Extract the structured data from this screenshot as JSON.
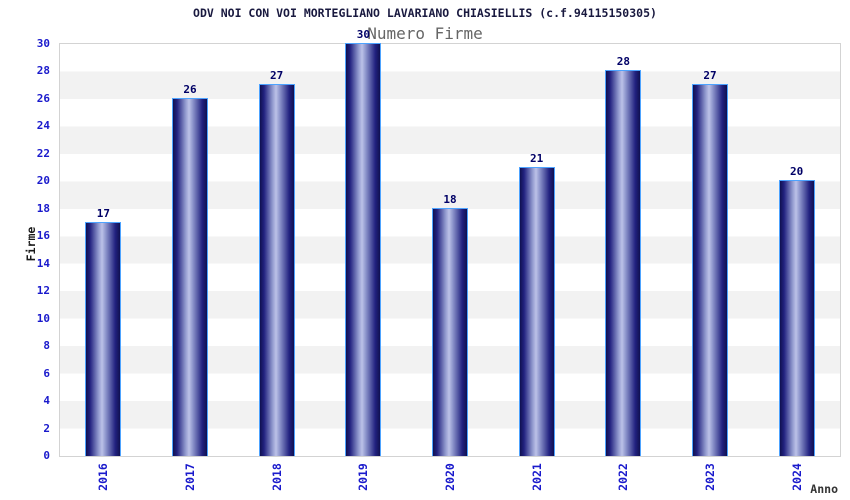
{
  "chart_data": {
    "type": "bar",
    "title": "ODV NOI CON VOI MORTEGLIANO LAVARIANO CHIASIELLIS (c.f.94115150305)",
    "subtitle": "Numero Firme",
    "xlabel": "Anno",
    "ylabel": "Firme",
    "categories": [
      "2016",
      "2017",
      "2018",
      "2019",
      "2020",
      "2021",
      "2022",
      "2023",
      "2024"
    ],
    "values": [
      17,
      26,
      27,
      30,
      18,
      21,
      28,
      27,
      20
    ],
    "ylim": [
      0,
      30
    ],
    "ytick_step": 2,
    "grid": "alternating-horizontal-bands",
    "legend_position": "none",
    "colors": {
      "bar_dark": "#101050",
      "bar_mid": "#222280",
      "bar_highlight": "#bcc2e8",
      "bar_border": "#4da3ff",
      "tick_text": "#1a1acc",
      "value_text": "#000066",
      "title_text": "#19193f",
      "subtitle_text": "#666666",
      "band_gray": "#f2f2f2",
      "plot_border": "#d3d3d3"
    }
  }
}
